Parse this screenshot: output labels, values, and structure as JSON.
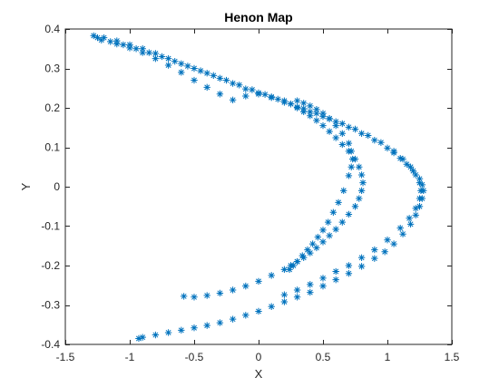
{
  "chart_data": {
    "type": "scatter",
    "title": "Henon Map",
    "xlabel": "X",
    "ylabel": "Y",
    "xlim": [
      -1.5,
      1.5
    ],
    "ylim": [
      -0.4,
      0.4
    ],
    "xticks": [
      -1.5,
      -1,
      -0.5,
      0,
      0.5,
      1,
      1.5
    ],
    "xtick_labels": [
      "-1.5",
      "-1",
      "-0.5",
      "0",
      "0.5",
      "1",
      "1.5"
    ],
    "yticks": [
      -0.4,
      -0.3,
      -0.2,
      -0.1,
      0,
      0.1,
      0.2,
      0.3,
      0.4
    ],
    "ytick_labels": [
      "-0.4",
      "-0.3",
      "-0.2",
      "-0.1",
      "0",
      "0.1",
      "0.2",
      "0.3",
      "0.4"
    ],
    "grid": false,
    "marker": "asterisk",
    "series": [
      {
        "color": "#0072BD",
        "x": [
          -1.28,
          -1.2,
          -1.1,
          -1.0,
          -0.9,
          -0.8,
          -0.7,
          -0.6,
          -0.5,
          -0.4,
          -0.3,
          -0.2,
          -0.1,
          0.0,
          0.1,
          0.2,
          0.3,
          0.4,
          0.5,
          0.6,
          0.7,
          0.8,
          0.9,
          1.0,
          1.05,
          1.1,
          1.15,
          1.2,
          1.25,
          1.27,
          1.28,
          1.27,
          1.25,
          1.22,
          1.18,
          1.12,
          1.05,
          0.98,
          0.9,
          0.8,
          0.7,
          0.6,
          0.5,
          0.4,
          0.3,
          0.2,
          0.1,
          0.0,
          -0.1,
          -0.2,
          -0.3,
          -0.4,
          -0.5,
          -0.6,
          -0.7,
          -0.8,
          -0.9,
          -0.93,
          -1.25,
          -1.15,
          -1.05,
          -0.95,
          -0.85,
          -0.75,
          -0.65,
          -0.55,
          -0.45,
          -0.35,
          -0.25,
          -0.15,
          -0.05,
          0.05,
          0.15,
          0.25,
          0.35,
          0.45,
          0.55,
          0.65,
          0.75,
          0.85,
          0.95,
          1.05,
          1.12,
          1.18,
          1.22,
          1.25,
          1.26,
          1.25,
          1.22,
          1.17,
          1.1,
          1.0,
          0.9,
          0.8,
          0.7,
          0.6,
          0.5,
          0.4,
          0.3,
          0.2,
          -1.22,
          -1.1,
          -1.0,
          -0.9,
          -0.8,
          -0.7,
          -0.6,
          -0.5,
          -0.4,
          -0.3,
          -0.2,
          -0.1,
          0.0,
          0.1,
          0.2,
          0.25,
          0.3,
          0.35,
          0.4,
          0.45,
          0.5,
          0.55,
          0.6,
          0.65,
          0.7,
          0.75,
          0.78,
          0.8,
          0.81,
          0.8,
          0.78,
          0.75,
          0.7,
          0.65,
          0.6,
          0.55,
          0.5,
          0.45,
          0.4,
          0.35,
          0.3,
          0.25,
          0.2,
          0.1,
          0.0,
          -0.1,
          -0.2,
          -0.3,
          -0.4,
          -0.5,
          -0.58,
          0.3,
          0.35,
          0.4,
          0.45,
          0.5,
          0.55,
          0.6,
          0.65,
          0.7,
          0.72,
          0.73,
          0.72,
          0.7,
          0.66,
          0.62,
          0.58,
          0.54,
          0.5,
          0.46,
          0.42,
          0.38,
          0.34,
          0.3,
          0.27,
          0.24
        ],
        "y": [
          0.383,
          0.378,
          0.37,
          0.36,
          0.35,
          0.338,
          0.325,
          0.312,
          0.3,
          0.288,
          0.275,
          0.262,
          0.248,
          0.238,
          0.226,
          0.214,
          0.202,
          0.19,
          0.178,
          0.165,
          0.151,
          0.135,
          0.118,
          0.098,
          0.086,
          0.072,
          0.057,
          0.04,
          0.02,
          0.005,
          -0.01,
          -0.03,
          -0.05,
          -0.072,
          -0.095,
          -0.12,
          -0.145,
          -0.165,
          -0.182,
          -0.202,
          -0.22,
          -0.236,
          -0.252,
          -0.268,
          -0.28,
          -0.292,
          -0.304,
          -0.316,
          -0.326,
          -0.336,
          -0.345,
          -0.352,
          -0.358,
          -0.364,
          -0.37,
          -0.376,
          -0.382,
          -0.385,
          0.378,
          0.368,
          0.36,
          0.35,
          0.34,
          0.33,
          0.318,
          0.306,
          0.294,
          0.282,
          0.27,
          0.258,
          0.246,
          0.234,
          0.222,
          0.21,
          0.198,
          0.186,
          0.173,
          0.16,
          0.146,
          0.13,
          0.112,
          0.09,
          0.07,
          0.05,
          0.03,
          0.01,
          -0.01,
          -0.03,
          -0.055,
          -0.08,
          -0.105,
          -0.135,
          -0.16,
          -0.18,
          -0.2,
          -0.215,
          -0.232,
          -0.248,
          -0.262,
          -0.274,
          0.372,
          0.362,
          0.352,
          0.34,
          0.325,
          0.308,
          0.29,
          0.27,
          0.252,
          0.235,
          0.22,
          0.23,
          0.235,
          0.228,
          0.218,
          0.21,
          0.2,
          0.19,
          0.18,
          0.168,
          0.155,
          0.14,
          0.124,
          0.107,
          0.09,
          0.07,
          0.05,
          0.03,
          0.01,
          -0.01,
          -0.03,
          -0.05,
          -0.07,
          -0.09,
          -0.108,
          -0.124,
          -0.14,
          -0.155,
          -0.168,
          -0.18,
          -0.19,
          -0.2,
          -0.21,
          -0.225,
          -0.24,
          -0.252,
          -0.262,
          -0.27,
          -0.276,
          -0.28,
          -0.278,
          0.218,
          0.212,
          0.205,
          0.196,
          0.186,
          0.172,
          0.155,
          0.135,
          0.11,
          0.09,
          0.07,
          0.05,
          0.028,
          -0.01,
          -0.04,
          -0.065,
          -0.09,
          -0.11,
          -0.128,
          -0.145,
          -0.16,
          -0.175,
          -0.19,
          -0.2,
          -0.21
        ]
      }
    ]
  }
}
